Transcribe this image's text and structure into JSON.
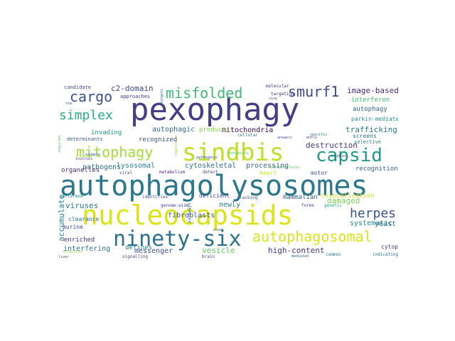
{
  "words": [
    {
      "text": "pexophagy",
      "color": "#433e85"
    },
    {
      "text": "autophagolysosomes",
      "color": "#2a788e"
    },
    {
      "text": "nucleocapsids",
      "color": "#dde318"
    },
    {
      "text": "sindbis",
      "color": "#bddf26"
    },
    {
      "text": "ninety-six",
      "color": "#2c728e"
    },
    {
      "text": "capsid",
      "color": "#1f988b"
    },
    {
      "text": "mitophagy",
      "color": "#a5db36"
    },
    {
      "text": "autophagosomal",
      "color": "#dde318"
    },
    {
      "text": "misfolded",
      "color": "#3bbb75"
    },
    {
      "text": "smurf1",
      "color": "#404688"
    },
    {
      "text": "herpes",
      "color": "#3b528b"
    },
    {
      "text": "cargo",
      "color": "#3b528b"
    },
    {
      "text": "simplex",
      "color": "#29af7f"
    },
    {
      "text": "c2-domain",
      "color": "#3e4a89"
    },
    {
      "text": "image-based",
      "color": "#482878"
    },
    {
      "text": "interferon",
      "color": "#3fbc73"
    },
    {
      "text": "autophagy",
      "color": "#31688e"
    },
    {
      "text": "parkin-mediated",
      "color": "#21918c"
    },
    {
      "text": "trafficking",
      "color": "#287d8e"
    },
    {
      "text": "screens",
      "color": "#2c728e"
    },
    {
      "text": "selective",
      "color": "#2a788e"
    },
    {
      "text": "recognition",
      "color": "#33638d"
    },
    {
      "text": "destruction",
      "color": "#453781"
    },
    {
      "text": "mitochondria",
      "color": "#440154"
    },
    {
      "text": "autophagic",
      "color": "#31688e"
    },
    {
      "text": "products",
      "color": "#86d549"
    },
    {
      "text": "recognized",
      "color": "#3b528b"
    },
    {
      "text": "invading",
      "color": "#1f988b"
    },
    {
      "text": "determinants",
      "color": "#365c8d"
    },
    {
      "text": "candidate",
      "color": "#3e4989"
    },
    {
      "text": "approaches",
      "color": "#453882"
    },
    {
      "text": "processing",
      "color": "#31688e"
    },
    {
      "text": "cytoskeletal",
      "color": "#2e6e8e"
    },
    {
      "text": "lysosomal",
      "color": "#27808e"
    },
    {
      "text": "pathogens",
      "color": "#2d718e"
    },
    {
      "text": "viruses",
      "color": "#2a768e"
    },
    {
      "text": "organelles",
      "color": "#482677"
    },
    {
      "text": "fibroblasts",
      "color": "#3a548c"
    },
    {
      "text": "newly",
      "color": "#2c738e"
    },
    {
      "text": "colocalization",
      "color": "#d2e21b"
    },
    {
      "text": "damaged",
      "color": "#7ad151"
    },
    {
      "text": "systematic",
      "color": "#238a8d"
    },
    {
      "text": "yeast",
      "color": "#2d708e"
    },
    {
      "text": "motor",
      "color": "#3b528b"
    },
    {
      "text": "heart",
      "color": "#d0e11c"
    },
    {
      "text": "mammalian",
      "color": "#355f8d"
    },
    {
      "text": "deficient",
      "color": "#3d4e8a"
    },
    {
      "text": "accumulate",
      "color": "#277f8e"
    },
    {
      "text": "clearance",
      "color": "#2d718e"
    },
    {
      "text": "murine",
      "color": "#3f4788"
    },
    {
      "text": "enriched",
      "color": "#472c7a"
    },
    {
      "text": "interfering",
      "color": "#2a768e"
    },
    {
      "text": "messenger",
      "color": "#3b528b"
    },
    {
      "text": "vesicle",
      "color": "#5ec962"
    },
    {
      "text": "high-content",
      "color": "#46337f"
    },
    {
      "text": "cytoplasm-to-vacuole",
      "color": "#443983"
    },
    {
      "text": "defines",
      "color": "#25848e"
    },
    {
      "text": "viral",
      "color": "#3b528b"
    },
    {
      "text": "metabolism",
      "color": "#482475"
    },
    {
      "text": "detect",
      "color": "#414487"
    },
    {
      "text": "genome-wide",
      "color": "#404688"
    },
    {
      "text": "lacking",
      "color": "#3d4e8a"
    },
    {
      "text": "identifies",
      "color": "#3a548c"
    },
    {
      "text": "pathways",
      "color": "#31688e"
    },
    {
      "text": "forms",
      "color": "#443a83"
    },
    {
      "text": "genetic",
      "color": "#1fa187"
    },
    {
      "text": "common",
      "color": "#2a788e"
    },
    {
      "text": "indicating",
      "color": "#2c728e"
    },
    {
      "text": "performed",
      "color": "#21918c"
    },
    {
      "text": "signalling",
      "color": "#3e4a89"
    },
    {
      "text": "brain",
      "color": "#3e4989"
    },
    {
      "text": "liver",
      "color": "#3b528b"
    },
    {
      "text": "cellular",
      "color": "#2d708e"
    },
    {
      "text": "molecular",
      "color": "#482878"
    },
    {
      "text": "targeting",
      "color": "#453882"
    },
    {
      "text": "rna",
      "color": "#3b528b"
    },
    {
      "text": "required",
      "color": "#52c569"
    },
    {
      "text": "involves",
      "color": "#3e4a89"
    },
    {
      "text": "regulation",
      "color": "#8fd744"
    },
    {
      "text": "specific",
      "color": "#2c728e"
    },
    {
      "text": "entry",
      "color": "#414487"
    },
    {
      "text": "answers",
      "color": "#3b528b"
    },
    {
      "text": "infection",
      "color": "#95d840"
    },
    {
      "text": "size",
      "color": "#3b528b"
    },
    {
      "text": "novel",
      "color": "#31688e"
    },
    {
      "text": "cellular-level",
      "color": "#5ec962"
    },
    {
      "text": "pathogenic",
      "color": "#3b528b"
    },
    {
      "text": "example",
      "color": "#31688e"
    },
    {
      "text": "studies",
      "color": "#3e4a89"
    },
    {
      "text": "targets",
      "color": "#2c728e"
    },
    {
      "text": "endogenous",
      "color": "#5ec962"
    },
    {
      "text": "mediated",
      "color": "#31688e"
    },
    {
      "text": "drosophila",
      "color": "#3e4a89"
    }
  ]
}
